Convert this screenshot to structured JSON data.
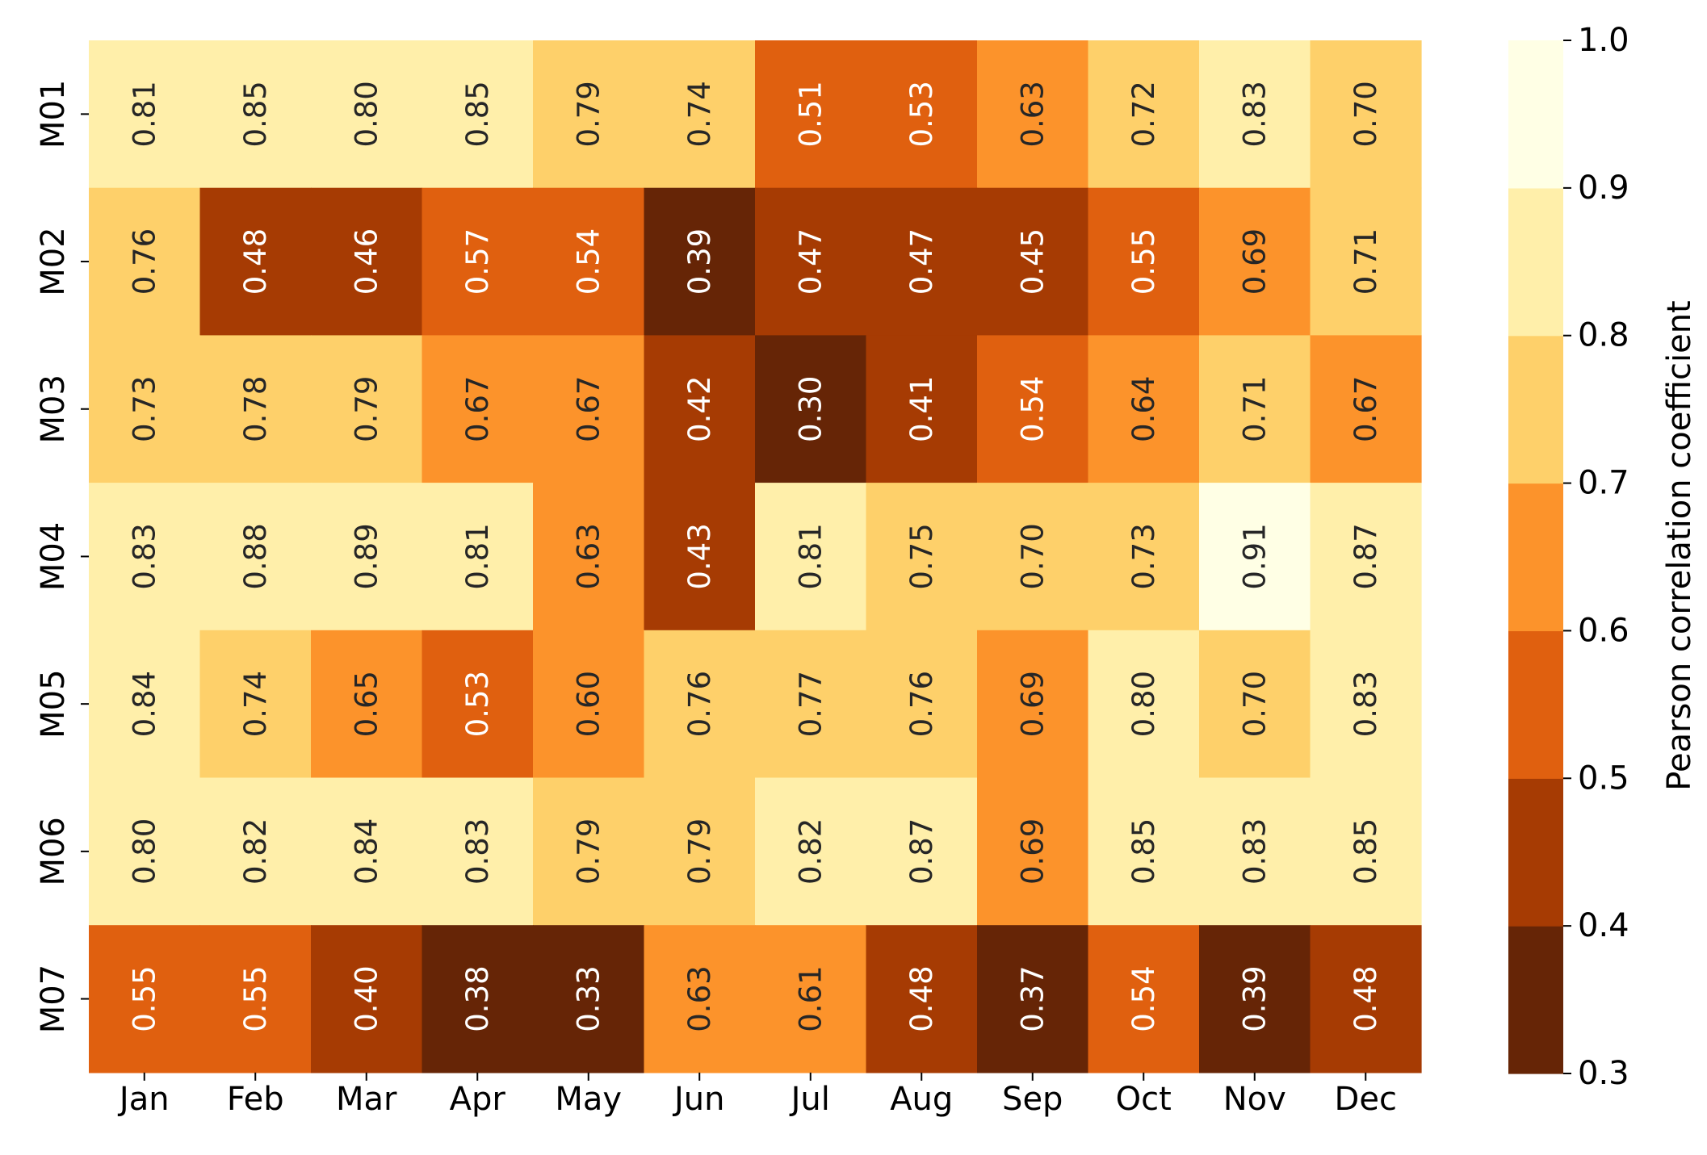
{
  "chart_data": {
    "type": "heatmap",
    "title": "",
    "xlabel": "",
    "ylabel": "",
    "x_categories": [
      "Jan",
      "Feb",
      "Mar",
      "Apr",
      "May",
      "Jun",
      "Jul",
      "Aug",
      "Sep",
      "Oct",
      "Nov",
      "Dec"
    ],
    "y_categories": [
      "M01",
      "M02",
      "M03",
      "M04",
      "M05",
      "M06",
      "M07"
    ],
    "values": [
      [
        0.81,
        0.85,
        0.8,
        0.85,
        0.79,
        0.74,
        0.51,
        0.53,
        0.63,
        0.72,
        0.83,
        0.7
      ],
      [
        0.76,
        0.48,
        0.46,
        0.57,
        0.54,
        0.39,
        0.47,
        0.47,
        0.45,
        0.55,
        0.69,
        0.71
      ],
      [
        0.73,
        0.78,
        0.79,
        0.67,
        0.67,
        0.42,
        0.3,
        0.41,
        0.54,
        0.64,
        0.71,
        0.67
      ],
      [
        0.83,
        0.88,
        0.89,
        0.81,
        0.63,
        0.43,
        0.81,
        0.75,
        0.7,
        0.73,
        0.91,
        0.87
      ],
      [
        0.84,
        0.74,
        0.65,
        0.53,
        0.6,
        0.76,
        0.77,
        0.76,
        0.69,
        0.8,
        0.7,
        0.83
      ],
      [
        0.8,
        0.82,
        0.84,
        0.83,
        0.79,
        0.79,
        0.82,
        0.87,
        0.69,
        0.85,
        0.83,
        0.85
      ],
      [
        0.55,
        0.55,
        0.4,
        0.38,
        0.33,
        0.63,
        0.61,
        0.48,
        0.37,
        0.54,
        0.39,
        0.48
      ]
    ],
    "value_format": "2 decimals",
    "cell_label_orientation": "rotated-vertical",
    "colorbar": {
      "label": "Pearson correlation coefficient",
      "range": [
        0.3,
        1.0
      ],
      "ticks": [
        "0.3",
        "0.4",
        "0.5",
        "0.6",
        "0.7",
        "0.8",
        "0.9",
        "1.0"
      ],
      "bins": [
        {
          "from": 0.3,
          "to": 0.4,
          "color": "#662506"
        },
        {
          "from": 0.4,
          "to": 0.5,
          "color": "#a63b03"
        },
        {
          "from": 0.5,
          "to": 0.6,
          "color": "#e0600f"
        },
        {
          "from": 0.6,
          "to": 0.7,
          "color": "#fc932b"
        },
        {
          "from": 0.7,
          "to": 0.8,
          "color": "#fed06a"
        },
        {
          "from": 0.8,
          "to": 0.9,
          "color": "#ffefaa"
        },
        {
          "from": 0.9,
          "to": 1.0,
          "color": "#ffffe5"
        }
      ],
      "placement": "right"
    },
    "grid": false,
    "colors": {
      "dark_text": "#262626",
      "light_text": "#ffffff"
    }
  }
}
